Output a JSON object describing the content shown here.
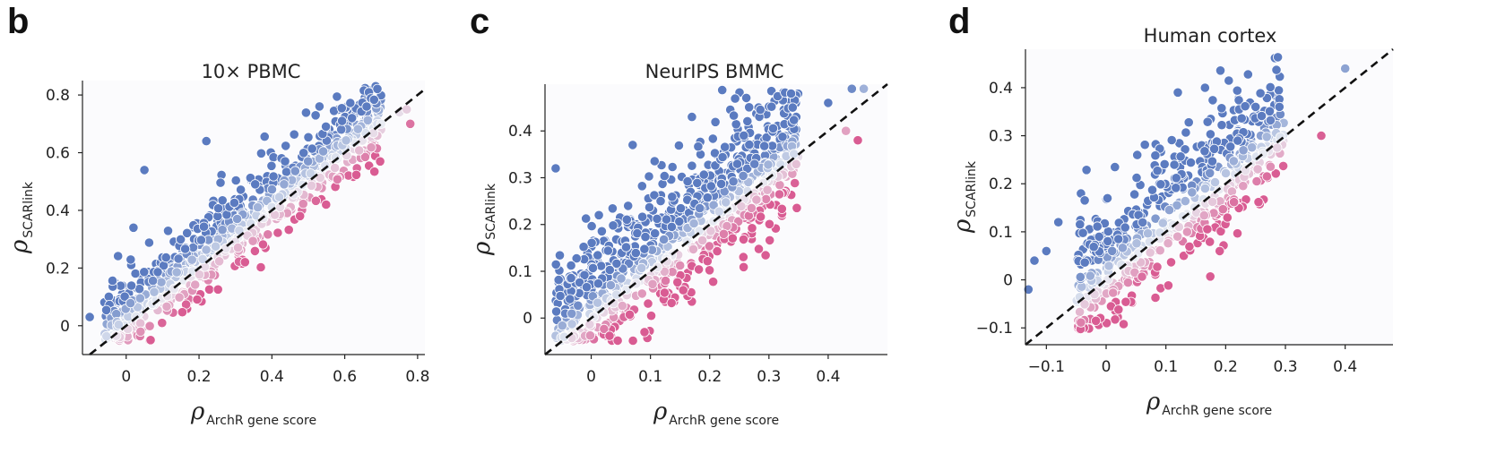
{
  "panels": [
    {
      "id": "b",
      "letter": "b",
      "title": "10× PBMC",
      "colors": {
        "above": "#5b7bc0",
        "below": "#d95c93",
        "neutral": "#e9ecf3"
      },
      "chart_data": {
        "type": "scatter",
        "title": "10× PBMC",
        "xlabel_symbol": "ρ",
        "xlabel_sub": "ArchR gene score",
        "ylabel_symbol": "ρ",
        "ylabel_sub": "SCARlink",
        "xlim": [
          -0.12,
          0.82
        ],
        "ylim": [
          -0.1,
          0.85
        ],
        "xticks": [
          0,
          0.2,
          0.4,
          0.6,
          0.8
        ],
        "xtick_labels": [
          "0",
          "0.2",
          "0.4",
          "0.6",
          "0.8"
        ],
        "yticks": [
          0,
          0.2,
          0.4,
          0.6,
          0.8
        ],
        "ytick_labels": [
          "0",
          "0.2",
          "0.4",
          "0.6",
          "0.8"
        ],
        "reference_line": "y = x (dashed)",
        "n_points": 800,
        "seed": 11,
        "x_range_dense": [
          -0.06,
          0.7
        ],
        "tail_points": [
          [
            -0.1,
            0.03
          ],
          [
            0.02,
            0.34
          ],
          [
            0.05,
            0.54
          ],
          [
            0.22,
            0.64
          ],
          [
            0.62,
            0.72
          ],
          [
            0.66,
            0.76
          ],
          [
            0.7,
            0.7
          ],
          [
            0.75,
            0.74
          ],
          [
            0.78,
            0.7
          ],
          [
            0.77,
            0.75
          ]
        ]
      }
    },
    {
      "id": "c",
      "letter": "c",
      "title": "NeurIPS BMMC",
      "colors": {
        "above": "#5b7bc0",
        "below": "#d95c93",
        "neutral": "#e9ecf3"
      },
      "chart_data": {
        "type": "scatter",
        "title": "NeurIPS BMMC",
        "xlabel_symbol": "ρ",
        "xlabel_sub": "ArchR gene score",
        "ylabel_symbol": "ρ",
        "ylabel_sub": "SCARlink",
        "xlim": [
          -0.078,
          0.5
        ],
        "ylim": [
          -0.078,
          0.5
        ],
        "xticks": [
          0,
          0.1,
          0.2,
          0.3,
          0.4
        ],
        "xtick_labels": [
          "0",
          "0.1",
          "0.2",
          "0.3",
          "0.4"
        ],
        "yticks": [
          0,
          0.1,
          0.2,
          0.3,
          0.4
        ],
        "ytick_labels": [
          "0",
          "0.1",
          "0.2",
          "0.3",
          "0.4"
        ],
        "reference_line": "y = x (dashed)",
        "n_points": 900,
        "seed": 23,
        "x_range_dense": [
          -0.06,
          0.35
        ],
        "tail_points": [
          [
            -0.06,
            0.32
          ],
          [
            0.07,
            0.37
          ],
          [
            0.17,
            0.43
          ],
          [
            0.34,
            0.45
          ],
          [
            0.4,
            0.46
          ],
          [
            0.44,
            0.49
          ],
          [
            0.46,
            0.49
          ],
          [
            0.43,
            0.4
          ],
          [
            0.45,
            0.38
          ],
          [
            0.09,
            -0.03
          ]
        ]
      }
    },
    {
      "id": "d",
      "letter": "d",
      "title": "Human cortex",
      "colors": {
        "above": "#5b7bc0",
        "below": "#d95c93",
        "neutral": "#e9ecf3"
      },
      "chart_data": {
        "type": "scatter",
        "title": "Human cortex",
        "xlabel_symbol": "ρ",
        "xlabel_sub": "ArchR gene score",
        "ylabel_symbol": "ρ",
        "ylabel_sub": "SCARlink",
        "xlim": [
          -0.135,
          0.48
        ],
        "ylim": [
          -0.135,
          0.48
        ],
        "xticks": [
          -0.1,
          0,
          0.1,
          0.2,
          0.3,
          0.4
        ],
        "xtick_labels": [
          "−0.1",
          "0",
          "0.1",
          "0.2",
          "0.3",
          "0.4"
        ],
        "yticks": [
          -0.1,
          0,
          0.1,
          0.2,
          0.3,
          0.4
        ],
        "ytick_labels": [
          "−0.1",
          "0",
          "0.1",
          "0.2",
          "0.3",
          "0.4"
        ],
        "reference_line": "y = x (dashed)",
        "n_points": 600,
        "seed": 37,
        "x_range_dense": [
          -0.05,
          0.3
        ],
        "tail_points": [
          [
            -0.13,
            -0.02
          ],
          [
            -0.12,
            0.04
          ],
          [
            -0.1,
            0.06
          ],
          [
            -0.08,
            0.12
          ],
          [
            0.12,
            0.39
          ],
          [
            0.4,
            0.44
          ],
          [
            0.25,
            0.36
          ],
          [
            0.29,
            0.36
          ],
          [
            0.36,
            0.3
          ],
          [
            0.19,
            0.06
          ]
        ]
      }
    }
  ]
}
